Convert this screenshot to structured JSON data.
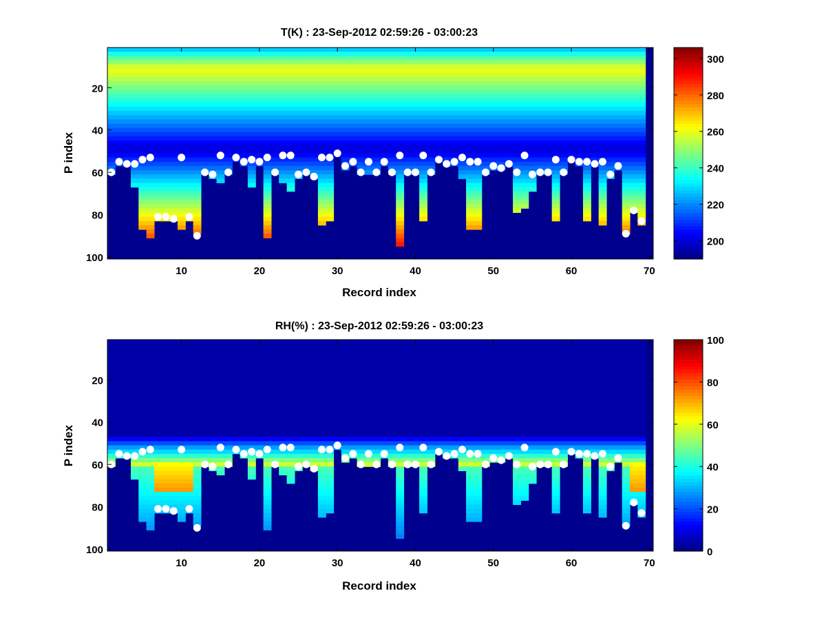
{
  "chart_data": [
    {
      "type": "heatmap",
      "title": "T(K) : 23-Sep-2012 02:59:26 - 03:00:23",
      "xlabel": "Record index",
      "ylabel": "P index",
      "xlim": [
        0.5,
        70.5
      ],
      "ylim": [
        1,
        101
      ],
      "y_reversed": true,
      "xticks": [
        10,
        20,
        30,
        40,
        50,
        60,
        70
      ],
      "yticks": [
        20,
        40,
        60,
        80,
        100
      ],
      "colormap": "jet",
      "clim": [
        190,
        306
      ],
      "colorbar_ticks": [
        200,
        220,
        240,
        260,
        280,
        300
      ],
      "markers_x": [
        1,
        2,
        3,
        4,
        5,
        6,
        7,
        8,
        9,
        10,
        11,
        12,
        13,
        14,
        15,
        16,
        17,
        18,
        19,
        20,
        21,
        22,
        23,
        24,
        25,
        26,
        27,
        28,
        29,
        30,
        31,
        32,
        33,
        34,
        35,
        36,
        37,
        38,
        39,
        40,
        41,
        42,
        43,
        44,
        45,
        46,
        47,
        48,
        49,
        50,
        51,
        52,
        53,
        54,
        55,
        56,
        57,
        58,
        59,
        60,
        61,
        62,
        63,
        64,
        65,
        66,
        67,
        68,
        69
      ],
      "markers_y": [
        60,
        55,
        56,
        56,
        54,
        53,
        81,
        81,
        82,
        53,
        81,
        90,
        60,
        61,
        52,
        60,
        53,
        55,
        54,
        55,
        53,
        60,
        52,
        52,
        61,
        60,
        62,
        53,
        53,
        51,
        57,
        55,
        60,
        55,
        60,
        55,
        60,
        52,
        60,
        60,
        52,
        60,
        54,
        56,
        55,
        53,
        55,
        55,
        60,
        57,
        58,
        56,
        60,
        52,
        61,
        60,
        60,
        54,
        60,
        54,
        55,
        55,
        56,
        55,
        61,
        57,
        89,
        78,
        83
      ],
      "bottom_p": [
        60,
        55,
        56,
        66,
        85,
        90,
        81,
        81,
        82,
        86,
        81,
        88,
        60,
        61,
        64,
        60,
        53,
        55,
        66,
        55,
        90,
        60,
        63,
        67,
        61,
        60,
        62,
        83,
        82,
        51,
        57,
        55,
        60,
        59,
        60,
        55,
        60,
        93,
        60,
        60,
        82,
        60,
        54,
        56,
        55,
        62,
        85,
        85,
        60,
        57,
        58,
        56,
        77,
        75,
        68,
        60,
        60,
        81,
        60,
        54,
        55,
        81,
        56,
        84,
        61,
        57,
        88,
        78,
        83
      ],
      "markers_color": "#ffffff"
    },
    {
      "type": "heatmap",
      "title": "RH(%) : 23-Sep-2012 02:59:26 - 03:00:23",
      "xlabel": "Record index",
      "ylabel": "P index",
      "xlim": [
        0.5,
        70.5
      ],
      "ylim": [
        1,
        101
      ],
      "y_reversed": true,
      "xticks": [
        10,
        20,
        30,
        40,
        50,
        60,
        70
      ],
      "yticks": [
        20,
        40,
        60,
        80,
        100
      ],
      "colormap": "jet",
      "clim": [
        0,
        100
      ],
      "colorbar_ticks": [
        0,
        20,
        40,
        60,
        80,
        100
      ],
      "markers_x": [
        1,
        2,
        3,
        4,
        5,
        6,
        7,
        8,
        9,
        10,
        11,
        12,
        13,
        14,
        15,
        16,
        17,
        18,
        19,
        20,
        21,
        22,
        23,
        24,
        25,
        26,
        27,
        28,
        29,
        30,
        31,
        32,
        33,
        34,
        35,
        36,
        37,
        38,
        39,
        40,
        41,
        42,
        43,
        44,
        45,
        46,
        47,
        48,
        49,
        50,
        51,
        52,
        53,
        54,
        55,
        56,
        57,
        58,
        59,
        60,
        61,
        62,
        63,
        64,
        65,
        66,
        67,
        68,
        69
      ],
      "markers_y": [
        60,
        55,
        56,
        56,
        54,
        53,
        81,
        81,
        82,
        53,
        81,
        90,
        60,
        61,
        52,
        60,
        53,
        55,
        54,
        55,
        53,
        60,
        52,
        52,
        61,
        60,
        62,
        53,
        53,
        51,
        57,
        55,
        60,
        55,
        60,
        55,
        60,
        52,
        60,
        60,
        52,
        60,
        54,
        56,
        55,
        53,
        55,
        55,
        60,
        57,
        58,
        56,
        60,
        52,
        61,
        60,
        60,
        54,
        60,
        54,
        55,
        55,
        56,
        55,
        61,
        57,
        89,
        78,
        83
      ],
      "markers_color": "#ffffff"
    }
  ]
}
